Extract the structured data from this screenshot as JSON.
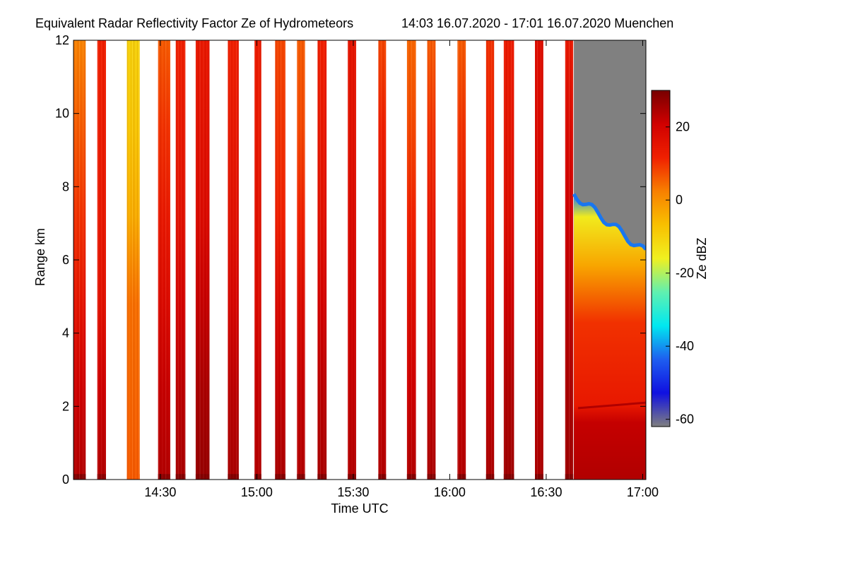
{
  "chart_data": {
    "type": "heatmap",
    "title": "Equivalent Radar Reflectivity Factor Ze of Hydrometeors",
    "time_range_label": "14:03 16.07.2020 - 17:01 16.07.2020 Muenchen",
    "xlabel": "Time UTC",
    "ylabel": "Range km",
    "colorbar_label": "Ze dBZ",
    "xlim_minutes": [
      843,
      1021
    ],
    "ylim_km": [
      0,
      12
    ],
    "x_ticks": [
      {
        "label": "14:30",
        "minute": 870
      },
      {
        "label": "15:00",
        "minute": 900
      },
      {
        "label": "15:30",
        "minute": 930
      },
      {
        "label": "16:00",
        "minute": 960
      },
      {
        "label": "16:30",
        "minute": 990
      },
      {
        "label": "17:00",
        "minute": 1020
      }
    ],
    "y_ticks": [
      {
        "label": "0",
        "value": 0
      },
      {
        "label": "2",
        "value": 2
      },
      {
        "label": "4",
        "value": 4
      },
      {
        "label": "6",
        "value": 6
      },
      {
        "label": "8",
        "value": 8
      },
      {
        "label": "10",
        "value": 10
      },
      {
        "label": "12",
        "value": 12
      }
    ],
    "colorbar_range_dbz": [
      -62,
      30
    ],
    "colorbar_ticks": [
      {
        "label": "20",
        "value": 20
      },
      {
        "label": "0",
        "value": 0
      },
      {
        "label": "-20",
        "value": -20
      },
      {
        "label": "-40",
        "value": -40
      },
      {
        "label": "-60",
        "value": -60
      }
    ],
    "colormap": [
      "#808080",
      "#1010e0",
      "#1e5ef0",
      "#00e8f0",
      "#60f0b0",
      "#f0f020",
      "#f8c000",
      "#f88000",
      "#f02000",
      "#d00000",
      "#780000"
    ],
    "no_signal_color": "#808080",
    "scans": [
      {
        "start": 843.0,
        "end": 846.8,
        "profile": [
          24,
          21,
          15,
          10,
          6,
          2
        ],
        "lowest": 29
      },
      {
        "start": 850.4,
        "end": 853.1,
        "profile": [
          24,
          21,
          16,
          14,
          13,
          12
        ],
        "lowest": 28
      },
      {
        "start": 859.6,
        "end": 863.6,
        "profile": [
          6,
          5,
          4,
          -4,
          -8,
          -10
        ],
        "lowest": 6
      },
      {
        "start": 869.3,
        "end": 873.1,
        "profile": [
          24,
          22,
          18,
          14,
          10,
          6
        ],
        "lowest": 28
      },
      {
        "start": 874.8,
        "end": 877.8,
        "profile": [
          25,
          23,
          20,
          16,
          14,
          12
        ],
        "lowest": 29
      },
      {
        "start": 881.0,
        "end": 885.3,
        "profile": [
          27,
          25,
          22,
          18,
          16,
          14
        ],
        "lowest": 29
      },
      {
        "start": 891.0,
        "end": 894.4,
        "profile": [
          25,
          23,
          19,
          16,
          14,
          12
        ],
        "lowest": 29
      },
      {
        "start": 899.3,
        "end": 901.4,
        "profile": [
          24,
          22,
          18,
          16,
          14,
          13
        ],
        "lowest": 29
      },
      {
        "start": 905.7,
        "end": 908.9,
        "profile": [
          25,
          22,
          18,
          12,
          10,
          8
        ],
        "lowest": 29
      },
      {
        "start": 912.5,
        "end": 915.0,
        "profile": [
          24,
          22,
          18,
          12,
          8,
          6
        ],
        "lowest": 29
      },
      {
        "start": 918.9,
        "end": 921.7,
        "profile": [
          25,
          23,
          20,
          16,
          14,
          12
        ],
        "lowest": 29
      },
      {
        "start": 928.3,
        "end": 930.9,
        "profile": [
          24,
          22,
          20,
          18,
          16,
          15
        ],
        "lowest": 29
      },
      {
        "start": 937.8,
        "end": 940.2,
        "profile": [
          24,
          22,
          19,
          16,
          12,
          8
        ],
        "lowest": 29
      },
      {
        "start": 946.7,
        "end": 949.5,
        "profile": [
          24,
          21,
          17,
          12,
          8,
          5
        ],
        "lowest": 29
      },
      {
        "start": 953.0,
        "end": 955.6,
        "profile": [
          25,
          22,
          18,
          14,
          10,
          6
        ],
        "lowest": 29
      },
      {
        "start": 962.4,
        "end": 965.0,
        "profile": [
          24,
          22,
          18,
          14,
          10,
          6
        ],
        "lowest": 29
      },
      {
        "start": 971.3,
        "end": 973.8,
        "profile": [
          25,
          22,
          18,
          14,
          12,
          10
        ],
        "lowest": 29
      },
      {
        "start": 976.8,
        "end": 980.0,
        "profile": [
          26,
          24,
          21,
          17,
          15,
          13
        ],
        "lowest": 29
      },
      {
        "start": 986.5,
        "end": 989.1,
        "profile": [
          25,
          23,
          21,
          19,
          18,
          17
        ],
        "lowest": 29
      },
      {
        "start": 995.9,
        "end": 998.4,
        "profile": [
          26,
          25,
          23,
          21,
          18,
          14
        ],
        "lowest": 29
      }
    ],
    "continuous_segment": {
      "start": 998.6,
      "end": 1021.0,
      "echo_top_km_start": 7.8,
      "echo_top_km_end": 6.2,
      "below_2km_dbz": 24,
      "mid_layer_dbz": 10,
      "upper_layer_dbz": -15
    }
  }
}
